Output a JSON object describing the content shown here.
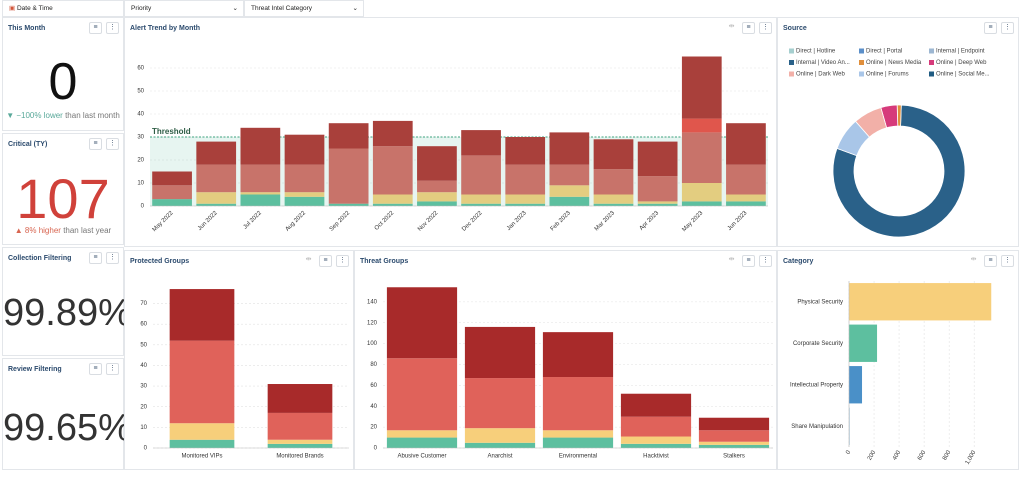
{
  "filters": [
    "Date & Time",
    "Priority",
    "Threat Intel Category"
  ],
  "kpis": [
    {
      "title": "This Month",
      "value": "0",
      "change": "−100% lower",
      "note": "than last month",
      "trend": "down"
    },
    {
      "title": "Critical (TY)",
      "value": "107",
      "change": "8% higher",
      "note": "than last year",
      "trend": "up"
    },
    {
      "title": "Collection Filtering",
      "value": "99.89%"
    },
    {
      "title": "Review Filtering",
      "value": "99.65%"
    }
  ],
  "chart_data": [
    {
      "type": "stacked_bar",
      "title": "Alert Trend by Month",
      "categories": [
        "May 2022",
        "Jun 2022",
        "Jul 2022",
        "Aug 2022",
        "Sep 2022",
        "Oct 2022",
        "Nov 2022",
        "Dec 2022",
        "Jan 2023",
        "Feb 2023",
        "Mar 2023",
        "Apr 2023",
        "May 2023",
        "Jun 2023"
      ],
      "series": [
        {
          "color": "#5dbf9f",
          "values": [
            3,
            1,
            5,
            4,
            1,
            1,
            2,
            1,
            1,
            4,
            1,
            1,
            2,
            2
          ]
        },
        {
          "color": "#e3cd80",
          "values": [
            0,
            5,
            1,
            2,
            0,
            4,
            4,
            4,
            4,
            5,
            4,
            1,
            8,
            3
          ]
        },
        {
          "color": "#c8736a",
          "values": [
            6,
            12,
            12,
            12,
            24,
            21,
            5,
            17,
            13,
            9,
            11,
            11,
            22,
            13
          ]
        },
        {
          "color": "#e0564c",
          "values": [
            0,
            0,
            0,
            0,
            0,
            0,
            0,
            0,
            0,
            0,
            0,
            0,
            6,
            0
          ]
        },
        {
          "color": "#a9403b",
          "values": [
            6,
            10,
            16,
            13,
            11,
            11,
            15,
            11,
            12,
            14,
            13,
            15,
            27,
            18
          ]
        }
      ],
      "threshold": {
        "label": "Threshold",
        "value": 30
      },
      "ylim": [
        0,
        70
      ],
      "yticks": [
        0,
        10,
        20,
        30,
        40,
        50,
        60
      ],
      "grid": true,
      "rotate_labels": true
    },
    {
      "type": "donut",
      "title": "Source",
      "categories": [
        "Direct | Hotline",
        "Direct | Portal",
        "Internal | Endpoint",
        "Internal | Video An...",
        "Online | News Media",
        "Online | Deep Web",
        "Online | Dark Web",
        "Online | Forums",
        "Online | Social Me..."
      ],
      "values": [
        0,
        0,
        0,
        80,
        1,
        4,
        7,
        8,
        0
      ],
      "colors": [
        "#a6cfcf",
        "#5b8fc9",
        "#9db7d2",
        "#2a6189",
        "#e08f3c",
        "#d63b7b",
        "#f2b0a8",
        "#a9c6e8",
        "#1f5b82"
      ]
    },
    {
      "type": "stacked_bar",
      "title": "Protected Groups",
      "categories": [
        "Monitored VIPs",
        "Monitored Brands"
      ],
      "series": [
        {
          "color": "#5dbf9f",
          "values": [
            4,
            2
          ]
        },
        {
          "color": "#f7cf7b",
          "values": [
            8,
            2
          ]
        },
        {
          "color": "#e0625a",
          "values": [
            40,
            13
          ]
        },
        {
          "color": "#a82a2a",
          "values": [
            25,
            14
          ]
        }
      ],
      "ylim": [
        0,
        78
      ],
      "yticks": [
        0,
        10,
        20,
        30,
        40,
        50,
        60,
        70
      ],
      "grid": true
    },
    {
      "type": "stacked_bar",
      "title": "Threat Groups",
      "categories": [
        "Abusive Customer",
        "Anarchist",
        "Environmental",
        "Hacktivist",
        "Stalkers"
      ],
      "series": [
        {
          "color": "#5dbf9f",
          "values": [
            10,
            5,
            10,
            4,
            3
          ]
        },
        {
          "color": "#f7cf7b",
          "values": [
            7,
            14,
            7,
            7,
            3
          ]
        },
        {
          "color": "#e0625a",
          "values": [
            69,
            48,
            51,
            19,
            11
          ]
        },
        {
          "color": "#a82a2a",
          "values": [
            68,
            49,
            43,
            22,
            12
          ]
        }
      ],
      "ylim": [
        0,
        160
      ],
      "yticks": [
        0,
        20,
        40,
        60,
        80,
        100,
        120,
        140
      ],
      "grid": true
    },
    {
      "type": "hbar",
      "title": "Category",
      "categories": [
        "Physical Security",
        "Corporate Security",
        "Intellectual Property",
        "Share Manipulation"
      ],
      "values": [
        1136,
        224,
        104,
        8
      ],
      "colors": [
        "#f7cf7b",
        "#5dbf9f",
        "#4a90c8",
        "#c9dde9"
      ],
      "xlim": [
        0,
        1150
      ],
      "xticks": [
        0,
        200,
        400,
        600,
        800,
        {
          "value": 1000,
          "label": "1,000"
        }
      ],
      "grid": true
    }
  ]
}
